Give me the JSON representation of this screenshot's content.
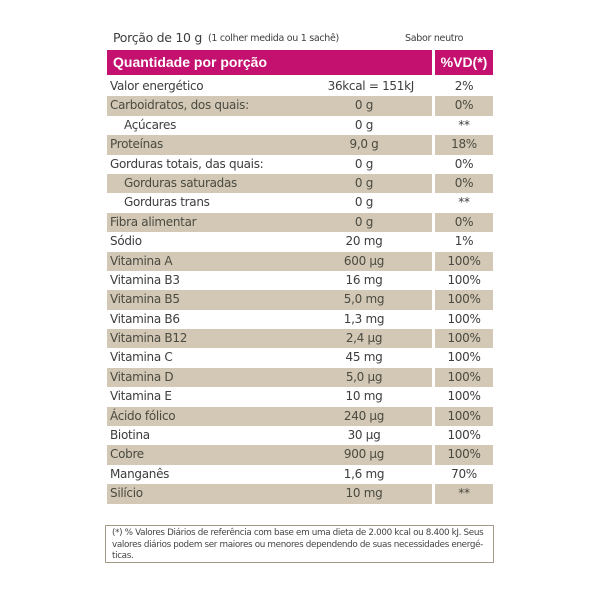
{
  "serving": {
    "portion": "Porção de 10 g",
    "measure": "(1 colher medida ou 1 sachê)",
    "flavor": "Sabor neutro"
  },
  "table": {
    "header": {
      "quantity_label": "Quantidade por porção",
      "dv_label": "%VD(*)"
    },
    "colors": {
      "header_bg": "#c4106e",
      "shade_bg": "#d3c8b6"
    },
    "rows": [
      {
        "name": "Valor energético",
        "amount": "36kcal = 151kJ",
        "dv": "2%"
      },
      {
        "name": "Carboidratos, dos quais:",
        "amount": "0 g",
        "dv": "0%"
      },
      {
        "name": "Açúcares",
        "amount": "0 g",
        "dv": "**"
      },
      {
        "name": "Proteínas",
        "amount": "9,0 g",
        "dv": "18%"
      },
      {
        "name": "Gorduras totais, das quais:",
        "amount": "0 g",
        "dv": "0%"
      },
      {
        "name": "Gorduras saturadas",
        "amount": "0 g",
        "dv": "0%"
      },
      {
        "name": "Gorduras trans",
        "amount": "0 g",
        "dv": "**"
      },
      {
        "name": "Fibra alimentar",
        "amount": "0 g",
        "dv": "0%"
      },
      {
        "name": "Sódio",
        "amount": "20 mg",
        "dv": "1%"
      },
      {
        "name": "Vitamina A",
        "amount": "600 µg",
        "dv": "100%"
      },
      {
        "name": "Vitamina B3",
        "amount": "16 mg",
        "dv": "100%"
      },
      {
        "name": "Vitamina B5",
        "amount": "5,0 mg",
        "dv": "100%"
      },
      {
        "name": "Vitamina B6",
        "amount": "1,3 mg",
        "dv": "100%"
      },
      {
        "name": "Vitamina B12",
        "amount": "2,4 µg",
        "dv": "100%"
      },
      {
        "name": "Vitamina C",
        "amount": "45 mg",
        "dv": "100%"
      },
      {
        "name": "Vitamina D",
        "amount": "5,0 µg",
        "dv": "100%"
      },
      {
        "name": "Vitamina E",
        "amount": "10 mg",
        "dv": "100%"
      },
      {
        "name": "Ácido fólico",
        "amount": "240 µg",
        "dv": "100%"
      },
      {
        "name": "Biotina",
        "amount": "30 µg",
        "dv": "100%"
      },
      {
        "name": "Cobre",
        "amount": "900 µg",
        "dv": "100%"
      },
      {
        "name": "Manganês",
        "amount": "1,6 mg",
        "dv": "70%"
      },
      {
        "name": "Silício",
        "amount": "10 mg",
        "dv": "**"
      }
    ]
  },
  "footnote": "(*) % Valores Diários de referência com base em uma dieta de 2.000 kcal ou 8.400 kJ. Seus valores diários podem ser maiores ou menores dependendo de suas necessidades energé-ticas."
}
